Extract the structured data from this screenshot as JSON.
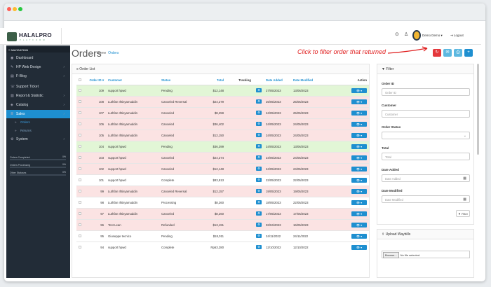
{
  "header": {
    "logo_title": "HALALPRO",
    "logo_sub": "P L A T F O R M",
    "user": "Demo Demo ▾",
    "logout": "⇥ Logout"
  },
  "sidebar": {
    "header": "≡ NAVIGATION",
    "items": [
      {
        "icon": "◉",
        "label": "Dashboard",
        "chevron": false
      },
      {
        "icon": "✎",
        "label": "HP Web Design",
        "chevron": true
      },
      {
        "icon": "▤",
        "label": "F-Blog",
        "chevron": true
      },
      {
        "icon": "☏",
        "label": "Support Ticket",
        "chevron": false
      },
      {
        "icon": "▥",
        "label": "Report & Statistic",
        "chevron": true
      },
      {
        "icon": "◈",
        "label": "Catalog",
        "chevron": true
      },
      {
        "icon": "≣",
        "label": "Sales",
        "chevron": true,
        "active": true
      },
      {
        "icon": "»",
        "label": "Orders",
        "sub": true,
        "current": true
      },
      {
        "icon": "»",
        "label": "Returns",
        "sub": true
      },
      {
        "icon": "⚙",
        "label": "System",
        "chevron": true
      }
    ],
    "stats": [
      {
        "label": "Orders Completed",
        "percent": "0%",
        "fill": 0
      },
      {
        "label": "Orders Processing",
        "percent": "0%",
        "fill": 0
      },
      {
        "label": "Other Statuses",
        "percent": "0%",
        "fill": 0
      }
    ]
  },
  "page": {
    "title": "Orders",
    "breadcrumb_home": "Home",
    "breadcrumb_current": "Orders",
    "annotation": "Click to filter order that returned",
    "colors": {
      "danger": "#e4383c",
      "primary": "#1e8fd0",
      "info": "#5cb8e0"
    }
  },
  "toolbar": [
    {
      "icon": "↻",
      "color": "#e4383c"
    },
    {
      "icon": "✉",
      "color": "#5cb8e0"
    },
    {
      "icon": "⎙",
      "color": "#5cb8e0"
    },
    {
      "icon": "+",
      "color": "#1e8fd0"
    }
  ],
  "order_list": {
    "title": "≡ Order List",
    "columns": [
      "Order ID ▾",
      "Customer",
      "Status",
      "Total",
      "Tracking",
      "Date Added",
      "Date Modified",
      "Action"
    ],
    "rows": [
      {
        "id": "109",
        "customer": "support hpwd",
        "status": "Pending",
        "total": "$12,148",
        "added": "27/05/2023",
        "modified": "13/06/2023",
        "tone": "pending"
      },
      {
        "id": "108",
        "customer": "Luthfan Ihtisyamuddin",
        "status": "Canceled Reversal",
        "total": "$24,279",
        "added": "25/05/2023",
        "modified": "25/05/2023",
        "tone": "canceled"
      },
      {
        "id": "107",
        "customer": "Luthfan Ihtisyamuddin",
        "status": "Canceled",
        "total": "$8,259",
        "added": "24/05/2023",
        "modified": "25/05/2023",
        "tone": "canceled"
      },
      {
        "id": "106",
        "customer": "Luthfan Ihtisyamuddin",
        "status": "Canceled",
        "total": "$36,402",
        "added": "24/05/2023",
        "modified": "24/05/2023",
        "tone": "canceled"
      },
      {
        "id": "105",
        "customer": "Luthfan Ihtisyamuddin",
        "status": "Canceled",
        "total": "$12,150",
        "added": "24/05/2023",
        "modified": "24/05/2023",
        "tone": "canceled"
      },
      {
        "id": "104",
        "customer": "support hpwd",
        "status": "Pending",
        "total": "$36,399",
        "added": "24/05/2023",
        "modified": "13/06/2023",
        "tone": "pending"
      },
      {
        "id": "103",
        "customer": "support hpwd",
        "status": "Canceled",
        "total": "$24,274",
        "added": "24/05/2023",
        "modified": "24/05/2023",
        "tone": "canceled"
      },
      {
        "id": "102",
        "customer": "support hpwd",
        "status": "Canceled",
        "total": "$12,148",
        "added": "24/05/2023",
        "modified": "24/05/2023",
        "tone": "canceled"
      },
      {
        "id": "101",
        "customer": "support hpwd",
        "status": "Complete",
        "total": "$83,913",
        "added": "22/05/2023",
        "modified": "22/05/2023",
        "tone": "other"
      },
      {
        "id": "99",
        "customer": "Luthfan Ihtisyamuddin",
        "status": "Canceled Reversal",
        "total": "$12,157",
        "added": "19/05/2023",
        "modified": "19/05/2023",
        "tone": "canceled"
      },
      {
        "id": "98",
        "customer": "Luthfan Ihtisyamuddin",
        "status": "Processing",
        "total": "$8,260",
        "added": "18/05/2023",
        "modified": "22/05/2023",
        "tone": "other"
      },
      {
        "id": "97",
        "customer": "Luthfan Ihtisyamuddin",
        "status": "Canceled",
        "total": "$8,260",
        "added": "17/05/2023",
        "modified": "17/05/2023",
        "tone": "canceled"
      },
      {
        "id": "96",
        "customer": "Test Lean",
        "status": "Refunded",
        "total": "$13,191",
        "added": "03/04/2023",
        "modified": "16/05/2023",
        "tone": "canceled"
      },
      {
        "id": "95",
        "customer": "Giuseppe tecnico",
        "status": "Pending",
        "total": "$18,011",
        "added": "24/11/2022",
        "modified": "24/11/2022",
        "tone": "other"
      },
      {
        "id": "94",
        "customer": "support hpwd",
        "status": "Complete",
        "total": "Rp63,280",
        "added": "12/10/2022",
        "modified": "12/10/2022",
        "tone": "other"
      }
    ]
  },
  "filter": {
    "title": "▼ Filter",
    "fields": [
      {
        "label": "Order ID",
        "placeholder": "Order ID"
      },
      {
        "label": "Customer",
        "placeholder": "Customer"
      },
      {
        "label": "Order Status",
        "placeholder": ""
      },
      {
        "label": "Total",
        "placeholder": "Total"
      },
      {
        "label": "Date Added",
        "placeholder": "Date Added"
      },
      {
        "label": "Date Modified",
        "placeholder": "Date Modified"
      }
    ],
    "button": "▼ Filter"
  },
  "upload": {
    "title": "⇪ Upload Waybills",
    "browse": "Browse...",
    "file_text": "No file selected."
  }
}
